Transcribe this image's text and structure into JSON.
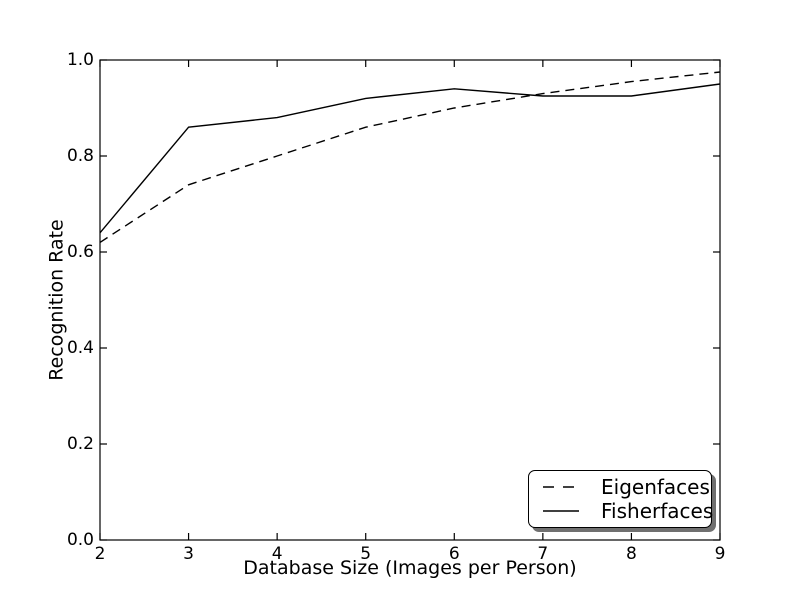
{
  "figure": {
    "background_color": "#ffffff",
    "axis_color": "#000000",
    "line_color": "#000000",
    "legend_shadow_color": "#707070"
  },
  "chart_data": {
    "type": "line",
    "title": "",
    "xlabel": "Database Size (Images per Person)",
    "ylabel": "Recognition Rate",
    "xlim": [
      2,
      9
    ],
    "ylim": [
      0.0,
      1.0
    ],
    "grid": false,
    "tick_direction": "in",
    "xtick_values": [
      2,
      3,
      4,
      5,
      6,
      7,
      8,
      9
    ],
    "xtick_labels": [
      "2",
      "3",
      "4",
      "5",
      "6",
      "7",
      "8",
      "9"
    ],
    "ytick_values": [
      0.0,
      0.2,
      0.4,
      0.6,
      0.8,
      1.0
    ],
    "ytick_labels": [
      "0.0",
      "0.2",
      "0.4",
      "0.6",
      "0.8",
      "1.0"
    ],
    "x": [
      2,
      3,
      4,
      5,
      6,
      7,
      8,
      9
    ],
    "series": [
      {
        "name": "Eigenfaces",
        "style": "dashed",
        "color": "#000000",
        "values": [
          0.62,
          0.74,
          0.8,
          0.86,
          0.9,
          0.93,
          0.955,
          0.975
        ]
      },
      {
        "name": "Fisherfaces",
        "style": "solid",
        "color": "#000000",
        "values": [
          0.64,
          0.86,
          0.88,
          0.92,
          0.94,
          0.925,
          0.925,
          0.95
        ]
      }
    ],
    "legend": {
      "position": "lower right",
      "entries": [
        "Eigenfaces",
        "Fisherfaces"
      ]
    }
  }
}
